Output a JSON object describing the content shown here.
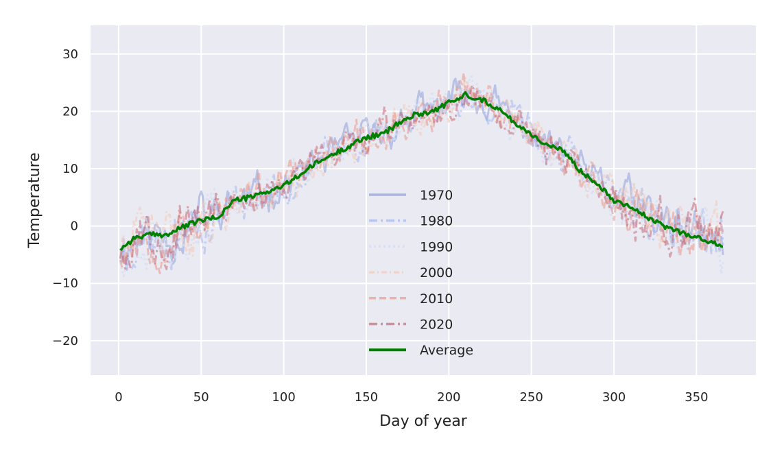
{
  "chart_data": {
    "type": "line",
    "xlabel": "Day of year",
    "ylabel": "Temperature",
    "xlim": [
      -17,
      386
    ],
    "ylim": [
      -26,
      35
    ],
    "xticks": [
      0,
      50,
      100,
      150,
      200,
      250,
      300,
      350
    ],
    "yticks": [
      -20,
      -10,
      0,
      10,
      20,
      30
    ],
    "grid": true,
    "legend_position": "lower center",
    "series": [
      {
        "name": "1970",
        "color": "#8f9fd8",
        "opacity": 0.55,
        "dash": "solid",
        "seed": 11
      },
      {
        "name": "1980",
        "color": "#a3b6f0",
        "opacity": 0.55,
        "dash": "dashdot",
        "seed": 23
      },
      {
        "name": "1990",
        "color": "#d6def2",
        "opacity": 0.75,
        "dash": "dotted",
        "seed": 37
      },
      {
        "name": "2000",
        "color": "#f2cbbb",
        "opacity": 0.6,
        "dash": "dashdotted-fine",
        "seed": 41
      },
      {
        "name": "2010",
        "color": "#e8998c",
        "opacity": 0.55,
        "dash": "dashed",
        "seed": 53
      },
      {
        "name": "2020",
        "color": "#c45d6a",
        "opacity": 0.5,
        "dash": "dashdot",
        "seed": 67
      },
      {
        "name": "Average",
        "color": "#008000",
        "opacity": 1.0,
        "dash": "solid",
        "average": true
      }
    ],
    "average_series": {
      "x": [
        1,
        10,
        20,
        30,
        40,
        50,
        60,
        70,
        80,
        90,
        100,
        110,
        120,
        130,
        140,
        150,
        160,
        170,
        180,
        190,
        200,
        205,
        210,
        215,
        220,
        230,
        240,
        250,
        260,
        270,
        280,
        290,
        300,
        310,
        320,
        330,
        340,
        350,
        360,
        366
      ],
      "y": [
        -4,
        -2,
        -1.5,
        -1.5,
        0,
        1,
        1.5,
        4.5,
        5,
        6,
        7,
        9,
        11,
        12.5,
        14,
        15.5,
        16,
        18,
        19.5,
        20,
        21.5,
        22,
        23,
        22.5,
        22,
        20.5,
        18,
        16,
        14,
        13,
        9.5,
        7.5,
        4.5,
        3.5,
        1.5,
        0,
        -1,
        -2,
        -3,
        -3.5
      ]
    }
  }
}
